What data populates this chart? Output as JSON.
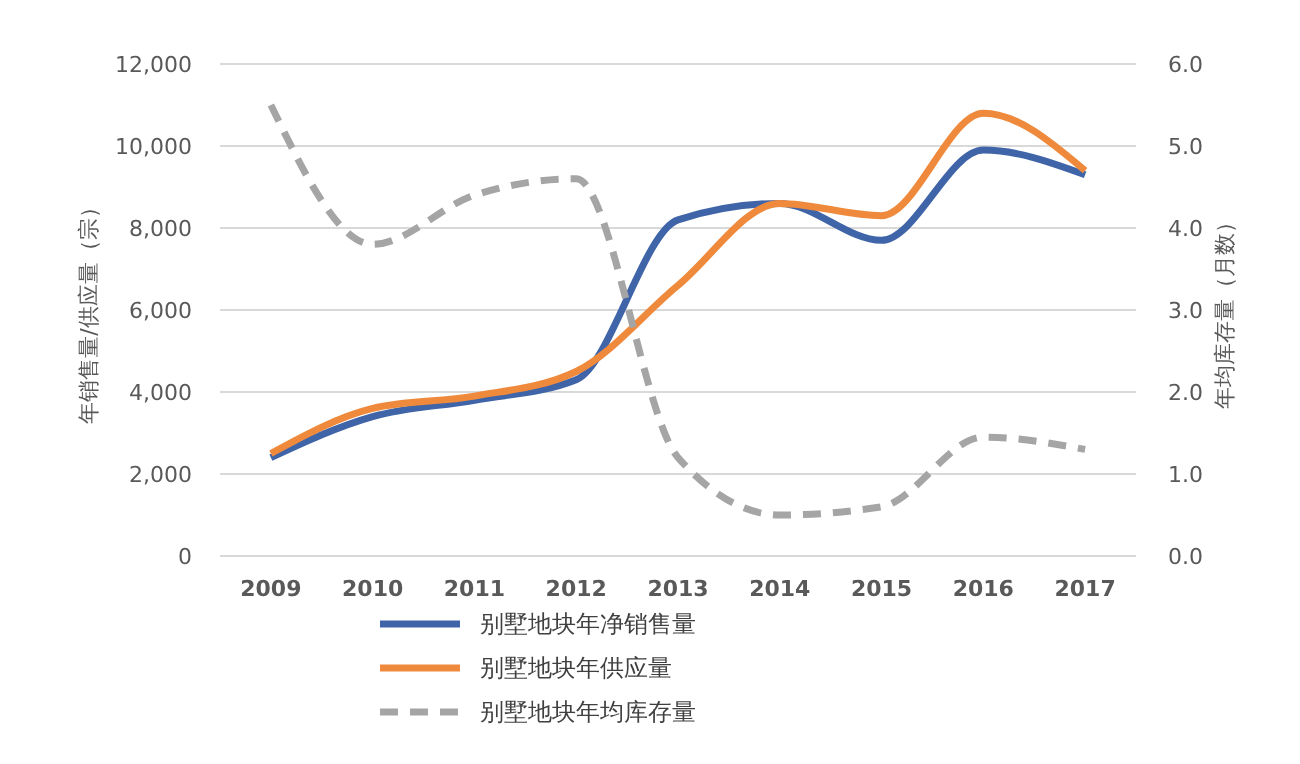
{
  "chart_data": {
    "type": "line",
    "categories": [
      "2009",
      "2010",
      "2011",
      "2012",
      "2013",
      "2014",
      "2015",
      "2016",
      "2017"
    ],
    "ylabel": "年销售量/供应量（宗）",
    "y2label": "年均库存量（月数）",
    "ylim": [
      0,
      12000
    ],
    "yticks": [
      {
        "value": 0,
        "label": "0"
      },
      {
        "value": 2000,
        "label": "2,000"
      },
      {
        "value": 4000,
        "label": "4,000"
      },
      {
        "value": 6000,
        "label": "6,000"
      },
      {
        "value": 8000,
        "label": "8,000"
      },
      {
        "value": 10000,
        "label": "10,000"
      },
      {
        "value": 12000,
        "label": "12,000"
      }
    ],
    "y2lim": [
      0,
      6
    ],
    "y2ticks": [
      {
        "value": 0,
        "label": "0.0"
      },
      {
        "value": 1,
        "label": "1.0"
      },
      {
        "value": 2,
        "label": "2.0"
      },
      {
        "value": 3,
        "label": "3.0"
      },
      {
        "value": 4,
        "label": "4.0"
      },
      {
        "value": 5,
        "label": "5.0"
      },
      {
        "value": 6,
        "label": "6.0"
      }
    ],
    "grid": "y",
    "legend": "bottom",
    "marker": "none",
    "series": [
      {
        "name": "别墅地块年净销售量",
        "color": "#3f64a8",
        "values": [
          2400,
          3400,
          3800,
          4300,
          8200,
          8600,
          7700,
          9900,
          9300
        ]
      },
      {
        "name": "别墅地块年供应量",
        "color": "#ef8a3c",
        "values": [
          2500,
          3600,
          3900,
          4500,
          6600,
          8600,
          8300,
          10800,
          9400
        ]
      },
      {
        "name": "别墅地块年均库存量",
        "color": "#a5a5a5",
        "axis": "y2",
        "line_style": "dashed",
        "values": [
          5.5,
          3.8,
          4.4,
          4.6,
          1.2,
          0.5,
          0.6,
          1.45,
          1.3
        ]
      }
    ]
  }
}
